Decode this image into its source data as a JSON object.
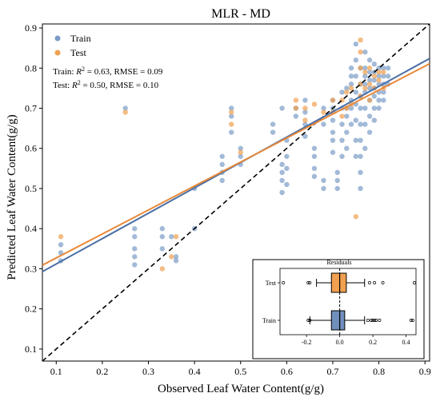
{
  "chart_data": {
    "type": "scatter",
    "title": "MLR - MD",
    "xlabel": "Observed Leaf Water Content(g/g)",
    "ylabel": "Predicted Leaf Water Content(g/g)",
    "xlim": [
      0.07,
      0.91
    ],
    "ylim": [
      0.07,
      0.91
    ],
    "xticks": [
      "0.1",
      "0.2",
      "0.3",
      "0.4",
      "0.5",
      "0.6",
      "0.7",
      "0.8",
      "0.9"
    ],
    "yticks": [
      "0.1",
      "0.2",
      "0.3",
      "0.4",
      "0.5",
      "0.6",
      "0.7",
      "0.8",
      "0.9"
    ],
    "xtick_values": [
      0.1,
      0.2,
      0.3,
      0.4,
      0.5,
      0.6,
      0.7,
      0.8,
      0.9
    ],
    "ytick_values": [
      0.1,
      0.2,
      0.3,
      0.4,
      0.5,
      0.6,
      0.7,
      0.8,
      0.9
    ],
    "legend": {
      "location": "top-left",
      "entries": [
        "Train",
        "Test"
      ]
    },
    "colors": {
      "Train": "#7b9cc8",
      "Test": "#f0a050",
      "train_line": "#4a6fa5",
      "test_line": "#e8893a",
      "identity": "#000000"
    },
    "annotations": {
      "train_prefix": "Train: ",
      "test_prefix": "Test: ",
      "r2_label": "R",
      "r2_sup": "2",
      "train_suffix": " = 0.63, RMSE = 0.09",
      "test_suffix": " = 0.50, RMSE = 0.10"
    },
    "series": [
      {
        "name": "Train",
        "points": [
          [
            0.11,
            0.34
          ],
          [
            0.11,
            0.32
          ],
          [
            0.11,
            0.36
          ],
          [
            0.25,
            0.7
          ],
          [
            0.27,
            0.4
          ],
          [
            0.27,
            0.38
          ],
          [
            0.27,
            0.35
          ],
          [
            0.27,
            0.33
          ],
          [
            0.27,
            0.31
          ],
          [
            0.33,
            0.4
          ],
          [
            0.33,
            0.38
          ],
          [
            0.33,
            0.35
          ],
          [
            0.35,
            0.38
          ],
          [
            0.36,
            0.33
          ],
          [
            0.36,
            0.32
          ],
          [
            0.4,
            0.5
          ],
          [
            0.4,
            0.4
          ],
          [
            0.46,
            0.58
          ],
          [
            0.46,
            0.56
          ],
          [
            0.46,
            0.54
          ],
          [
            0.46,
            0.52
          ],
          [
            0.48,
            0.7
          ],
          [
            0.48,
            0.68
          ],
          [
            0.48,
            0.64
          ],
          [
            0.5,
            0.6
          ],
          [
            0.5,
            0.58
          ],
          [
            0.5,
            0.56
          ],
          [
            0.57,
            0.66
          ],
          [
            0.57,
            0.64
          ],
          [
            0.59,
            0.7
          ],
          [
            0.59,
            0.56
          ],
          [
            0.59,
            0.54
          ],
          [
            0.59,
            0.52
          ],
          [
            0.59,
            0.49
          ],
          [
            0.6,
            0.62
          ],
          [
            0.6,
            0.58
          ],
          [
            0.6,
            0.55
          ],
          [
            0.6,
            0.51
          ],
          [
            0.62,
            0.7
          ],
          [
            0.62,
            0.68
          ],
          [
            0.64,
            0.72
          ],
          [
            0.64,
            0.69
          ],
          [
            0.64,
            0.66
          ],
          [
            0.64,
            0.63
          ],
          [
            0.66,
            0.6
          ],
          [
            0.66,
            0.58
          ],
          [
            0.66,
            0.55
          ],
          [
            0.66,
            0.53
          ],
          [
            0.68,
            0.7
          ],
          [
            0.68,
            0.66
          ],
          [
            0.68,
            0.52
          ],
          [
            0.68,
            0.5
          ],
          [
            0.7,
            0.72
          ],
          [
            0.7,
            0.7
          ],
          [
            0.7,
            0.67
          ],
          [
            0.7,
            0.64
          ],
          [
            0.7,
            0.62
          ],
          [
            0.7,
            0.59
          ],
          [
            0.71,
            0.54
          ],
          [
            0.71,
            0.52
          ],
          [
            0.71,
            0.5
          ],
          [
            0.72,
            0.74
          ],
          [
            0.72,
            0.7
          ],
          [
            0.72,
            0.66
          ],
          [
            0.72,
            0.62
          ],
          [
            0.72,
            0.58
          ],
          [
            0.73,
            0.75
          ],
          [
            0.73,
            0.7
          ],
          [
            0.73,
            0.68
          ],
          [
            0.73,
            0.64
          ],
          [
            0.73,
            0.6
          ],
          [
            0.74,
            0.8
          ],
          [
            0.74,
            0.78
          ],
          [
            0.74,
            0.76
          ],
          [
            0.74,
            0.72
          ],
          [
            0.74,
            0.7
          ],
          [
            0.74,
            0.66
          ],
          [
            0.75,
            0.86
          ],
          [
            0.75,
            0.82
          ],
          [
            0.75,
            0.78
          ],
          [
            0.75,
            0.74
          ],
          [
            0.75,
            0.71
          ],
          [
            0.75,
            0.67
          ],
          [
            0.75,
            0.62
          ],
          [
            0.75,
            0.58
          ],
          [
            0.76,
            0.8
          ],
          [
            0.76,
            0.76
          ],
          [
            0.76,
            0.73
          ],
          [
            0.76,
            0.7
          ],
          [
            0.76,
            0.66
          ],
          [
            0.76,
            0.62
          ],
          [
            0.76,
            0.58
          ],
          [
            0.76,
            0.54
          ],
          [
            0.76,
            0.5
          ],
          [
            0.77,
            0.84
          ],
          [
            0.77,
            0.8
          ],
          [
            0.77,
            0.78
          ],
          [
            0.77,
            0.76
          ],
          [
            0.77,
            0.74
          ],
          [
            0.77,
            0.7
          ],
          [
            0.77,
            0.66
          ],
          [
            0.77,
            0.6
          ],
          [
            0.78,
            0.82
          ],
          [
            0.78,
            0.79
          ],
          [
            0.78,
            0.77
          ],
          [
            0.78,
            0.75
          ],
          [
            0.78,
            0.72
          ],
          [
            0.78,
            0.68
          ],
          [
            0.78,
            0.64
          ],
          [
            0.79,
            0.81
          ],
          [
            0.79,
            0.79
          ],
          [
            0.79,
            0.77
          ],
          [
            0.79,
            0.75
          ],
          [
            0.79,
            0.73
          ],
          [
            0.79,
            0.7
          ],
          [
            0.79,
            0.67
          ],
          [
            0.8,
            0.8
          ],
          [
            0.8,
            0.78
          ],
          [
            0.8,
            0.76
          ],
          [
            0.8,
            0.74
          ],
          [
            0.8,
            0.72
          ],
          [
            0.8,
            0.7
          ],
          [
            0.81,
            0.8
          ],
          [
            0.81,
            0.78
          ],
          [
            0.81,
            0.76
          ],
          [
            0.81,
            0.74
          ],
          [
            0.81,
            0.72
          ],
          [
            0.82,
            0.8
          ],
          [
            0.82,
            0.78
          ],
          [
            0.82,
            0.76
          ]
        ]
      },
      {
        "name": "Test",
        "points": [
          [
            0.11,
            0.38
          ],
          [
            0.25,
            0.69
          ],
          [
            0.33,
            0.3
          ],
          [
            0.35,
            0.33
          ],
          [
            0.36,
            0.38
          ],
          [
            0.48,
            0.69
          ],
          [
            0.48,
            0.66
          ],
          [
            0.5,
            0.59
          ],
          [
            0.62,
            0.72
          ],
          [
            0.62,
            0.7
          ],
          [
            0.64,
            0.7
          ],
          [
            0.64,
            0.67
          ],
          [
            0.66,
            0.71
          ],
          [
            0.68,
            0.69
          ],
          [
            0.7,
            0.72
          ],
          [
            0.7,
            0.69
          ],
          [
            0.72,
            0.72
          ],
          [
            0.72,
            0.68
          ],
          [
            0.73,
            0.74
          ],
          [
            0.73,
            0.7
          ],
          [
            0.74,
            0.75
          ],
          [
            0.74,
            0.71
          ],
          [
            0.75,
            0.43
          ],
          [
            0.76,
            0.87
          ],
          [
            0.76,
            0.84
          ],
          [
            0.76,
            0.8
          ],
          [
            0.76,
            0.76
          ],
          [
            0.76,
            0.73
          ],
          [
            0.77,
            0.79
          ],
          [
            0.77,
            0.75
          ],
          [
            0.78,
            0.8
          ],
          [
            0.78,
            0.76
          ],
          [
            0.78,
            0.72
          ],
          [
            0.79,
            0.78
          ],
          [
            0.79,
            0.75
          ],
          [
            0.8,
            0.79
          ],
          [
            0.8,
            0.77
          ],
          [
            0.81,
            0.79
          ],
          [
            0.81,
            0.75
          ]
        ]
      }
    ],
    "fit_lines": [
      {
        "name": "Train",
        "x": [
          0.07,
          0.91
        ],
        "y": [
          0.293,
          0.824
        ]
      },
      {
        "name": "Test",
        "x": [
          0.07,
          0.91
        ],
        "y": [
          0.309,
          0.811
        ]
      }
    ],
    "inset": {
      "title": "Residuals",
      "categories": [
        "Test",
        "Train"
      ],
      "xlim": [
        -0.36,
        0.46
      ],
      "xticks": [
        "-0.2",
        "0.0",
        "0.2",
        "0.4"
      ],
      "xtick_values": [
        -0.2,
        0.0,
        0.2,
        0.4
      ],
      "boxes": [
        {
          "name": "Test",
          "q1": -0.05,
          "median": 0.0,
          "q3": 0.04,
          "whisker_low": -0.14,
          "whisker_high": 0.15,
          "outliers": [
            -0.34,
            -0.19,
            -0.18,
            0.18,
            0.21,
            0.26,
            0.45
          ]
        },
        {
          "name": "Train",
          "q1": -0.05,
          "median": 0.0,
          "q3": 0.03,
          "whisker_low": -0.18,
          "whisker_high": 0.15,
          "outliers": [
            -0.19,
            -0.18,
            0.17,
            0.19,
            0.2,
            0.21,
            0.22,
            0.24,
            0.43,
            0.44
          ]
        }
      ]
    }
  }
}
